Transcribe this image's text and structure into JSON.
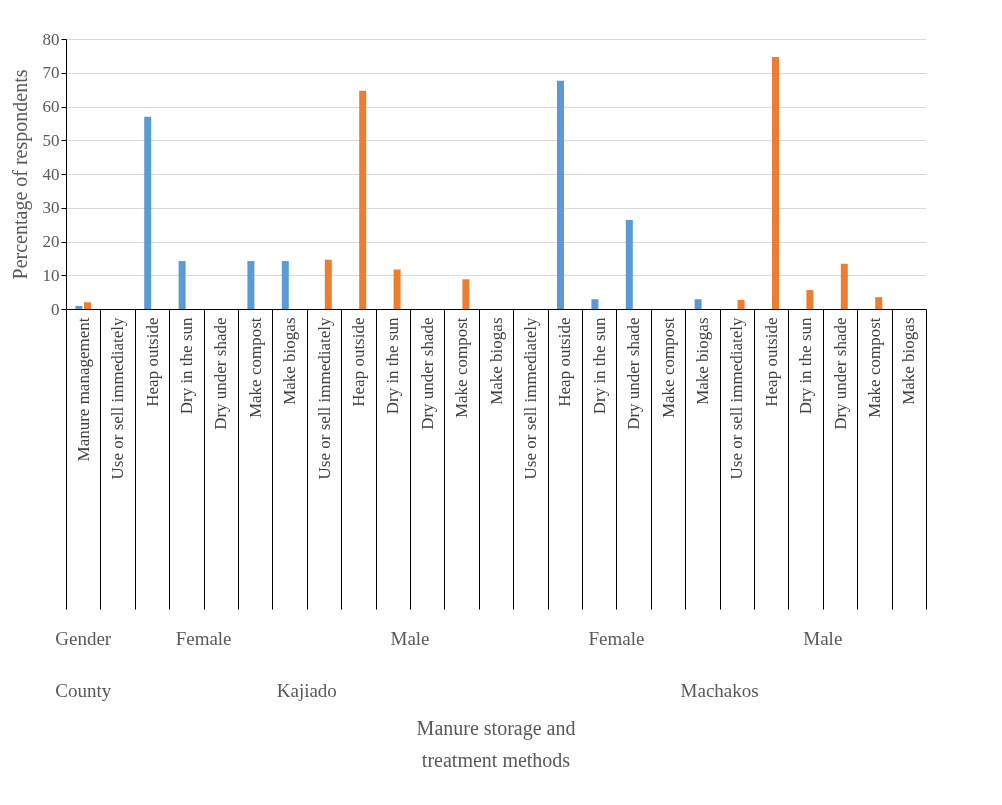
{
  "chart_data": {
    "type": "bar",
    "ylabel": "Percentage of respondents",
    "categories": [
      "Manure management",
      "Use or sell immediately",
      "Heap outside",
      "Dry in the sun",
      "Dry under shade",
      "Make compost",
      "Make biogas",
      "Use or sell immediately",
      "Heap outside",
      "Dry in the sun",
      "Dry under shade",
      "Make compost",
      "Make biogas",
      "Use or sell immediately",
      "Heap outside",
      "Dry in the sun",
      "Dry under shade",
      "Make compost",
      "Make biogas",
      "Use or sell immediately",
      "Heap outside",
      "Dry in the sun",
      "Dry under shade",
      "Make compost",
      "Make biogas"
    ],
    "series": [
      {
        "color": "#5b9bd5",
        "values": [
          0.9,
          0,
          57.0,
          14.2,
          0,
          14.2,
          14.2,
          null,
          null,
          null,
          null,
          null,
          null,
          0,
          67.6,
          2.9,
          26.4,
          0,
          2.9,
          null,
          null,
          null,
          null,
          null,
          null
        ]
      },
      {
        "color": "#ed7d31",
        "values": [
          2.0,
          null,
          null,
          null,
          null,
          null,
          null,
          14.6,
          64.7,
          11.7,
          0,
          8.8,
          0,
          null,
          null,
          null,
          null,
          null,
          null,
          2.7,
          74.7,
          5.6,
          13.4,
          3.5,
          0
        ]
      }
    ],
    "annotations": [
      "Gender",
      "Female",
      "Male",
      "Female",
      "Male",
      "County",
      "Kajiado",
      "Machakos",
      "Manure storage and treatment methods"
    ],
    "ylim": [
      0,
      80
    ],
    "yticks": [
      0,
      10,
      20,
      30,
      40,
      50,
      60,
      70,
      80
    ],
    "grid": "y",
    "legend": false
  }
}
